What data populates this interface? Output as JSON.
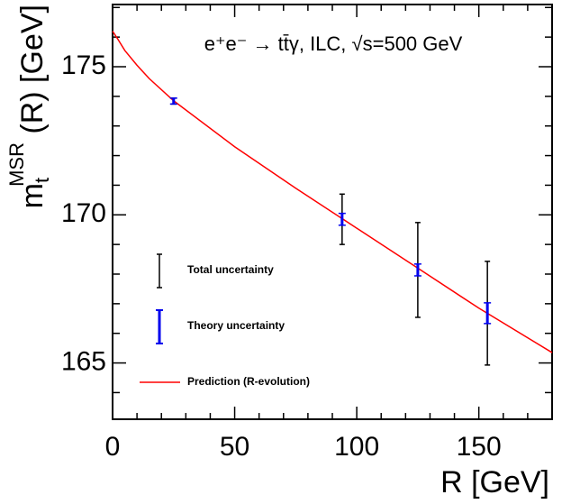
{
  "chart_data": {
    "type": "errorbar",
    "title": "e⁺e⁻ → tt̄γ, ILC, √s=500 GeV",
    "xlabel": "R [GeV]",
    "ylabel": {
      "base": "m",
      "sub": "t",
      "sup": "MSR",
      "rest": " (R) [GeV]"
    },
    "xlim": [
      0,
      180
    ],
    "ylim": [
      163.1,
      177.1
    ],
    "xticks": [
      0,
      50,
      100,
      150
    ],
    "yticks": [
      165,
      170,
      175
    ],
    "xminorticks": [
      10,
      20,
      30,
      40,
      60,
      70,
      80,
      90,
      110,
      120,
      130,
      140,
      160,
      170
    ],
    "yminorticks": [
      164,
      166,
      167,
      168,
      169,
      171,
      172,
      173,
      174,
      176,
      177
    ],
    "series": [
      {
        "name": "Total uncertainty",
        "color": "#000000",
        "x": [
          25,
          94,
          125,
          153.5
        ],
        "values": [
          173.84,
          169.85,
          168.14,
          166.68
        ],
        "errors": [
          0.1,
          0.85,
          1.6,
          1.75
        ]
      },
      {
        "name": "Theory uncertainty",
        "color": "#0000ee",
        "x": [
          25,
          94,
          125,
          153.5
        ],
        "values": [
          173.84,
          169.85,
          168.14,
          166.68
        ],
        "errors": [
          0.1,
          0.2,
          0.2,
          0.35
        ]
      },
      {
        "name": "Prediction (R-evolution)",
        "type": "line",
        "color": "#ff0000",
        "x": [
          0,
          2,
          5,
          10,
          15,
          25,
          50,
          75,
          100,
          125,
          150,
          180
        ],
        "values": [
          176.2,
          175.95,
          175.55,
          175.05,
          174.6,
          173.85,
          172.3,
          170.9,
          169.55,
          168.2,
          166.85,
          165.35
        ]
      }
    ]
  }
}
